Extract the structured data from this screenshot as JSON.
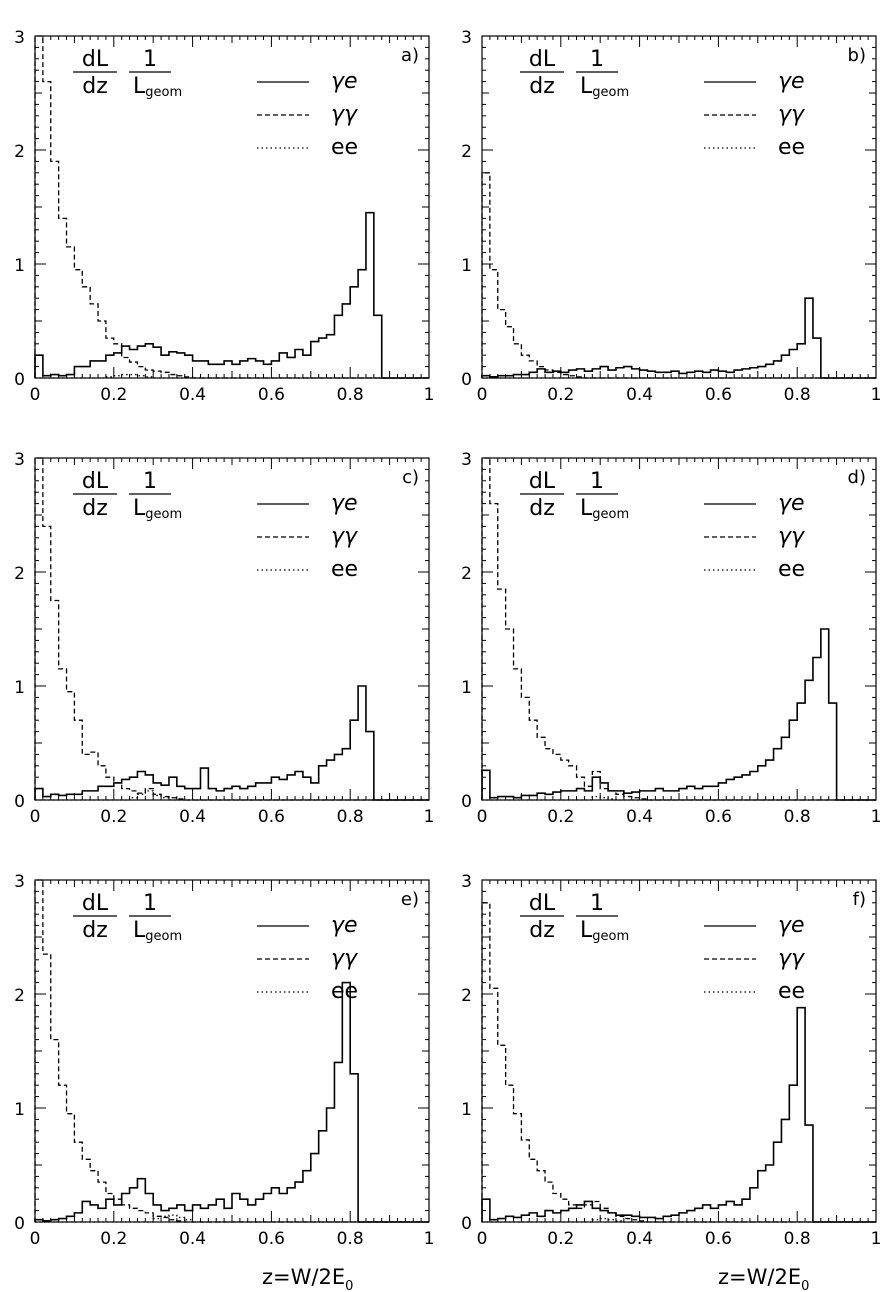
{
  "figure": {
    "xlabel": "z=W/2E",
    "xlabel_sub": "0"
  },
  "panel_common": {
    "frac_num": "dL",
    "frac_den": "dz",
    "frac2_num": "1",
    "frac2_den_main": "L",
    "frac2_den_sub": "geom",
    "legend": [
      {
        "label": "γe",
        "style": "solid"
      },
      {
        "label": "γγ",
        "style": "dashed"
      },
      {
        "label": "ee",
        "style": "dotted"
      }
    ],
    "xticks": [
      "0",
      "0.2",
      "0.4",
      "0.6",
      "0.8",
      "1"
    ],
    "yticks": [
      "0",
      "1",
      "2",
      "3"
    ]
  },
  "chart_data": [
    {
      "type": "line",
      "panel": "a)",
      "xlim": [
        0,
        1
      ],
      "ylim": [
        0,
        3
      ],
      "bin_width": 0.02,
      "series": [
        {
          "name": "γe",
          "style": "solid",
          "values": [
            0.2,
            0.02,
            0.03,
            0.02,
            0.03,
            0.1,
            0.1,
            0.15,
            0.15,
            0.2,
            0.22,
            0.28,
            0.25,
            0.28,
            0.3,
            0.27,
            0.2,
            0.23,
            0.22,
            0.2,
            0.15,
            0.15,
            0.12,
            0.12,
            0.15,
            0.12,
            0.15,
            0.17,
            0.15,
            0.12,
            0.15,
            0.22,
            0.18,
            0.25,
            0.2,
            0.32,
            0.35,
            0.38,
            0.55,
            0.65,
            0.8,
            0.95,
            1.45,
            0.55,
            0.0,
            0.0,
            0.0,
            0.0,
            0.0,
            0.0
          ]
        },
        {
          "name": "γγ",
          "style": "dashed",
          "values": [
            3.0,
            2.6,
            1.9,
            1.4,
            1.15,
            0.95,
            0.8,
            0.65,
            0.5,
            0.35,
            0.3,
            0.18,
            0.14,
            0.1,
            0.07,
            0.06,
            0.05,
            0.03,
            0.02,
            0.01,
            0,
            0,
            0,
            0,
            0,
            0,
            0,
            0,
            0,
            0,
            0,
            0,
            0,
            0,
            0,
            0,
            0,
            0,
            0,
            0,
            0,
            0,
            0,
            0,
            0,
            0,
            0,
            0,
            0,
            0
          ]
        },
        {
          "name": "ee",
          "style": "dotted",
          "values": [
            0,
            0,
            0,
            0,
            0,
            0,
            0,
            0,
            0,
            0.01,
            0.02,
            0.03,
            0.03,
            0.02,
            0.01,
            0,
            0,
            0,
            0,
            0,
            0,
            0,
            0,
            0,
            0,
            0,
            0,
            0,
            0,
            0,
            0,
            0,
            0,
            0,
            0,
            0,
            0,
            0,
            0,
            0,
            0,
            0,
            0,
            0,
            0,
            0,
            0,
            0,
            0,
            0
          ]
        }
      ]
    },
    {
      "type": "line",
      "panel": "b)",
      "xlim": [
        0,
        1
      ],
      "ylim": [
        0,
        3
      ],
      "bin_width": 0.02,
      "series": [
        {
          "name": "γe",
          "style": "solid",
          "values": [
            0.02,
            0.01,
            0.02,
            0.02,
            0.03,
            0.03,
            0.05,
            0.08,
            0.05,
            0.06,
            0.05,
            0.07,
            0.08,
            0.06,
            0.08,
            0.1,
            0.07,
            0.09,
            0.1,
            0.08,
            0.07,
            0.06,
            0.05,
            0.05,
            0.06,
            0.04,
            0.05,
            0.06,
            0.05,
            0.07,
            0.06,
            0.05,
            0.07,
            0.08,
            0.09,
            0.1,
            0.12,
            0.15,
            0.2,
            0.25,
            0.3,
            0.7,
            0.35,
            0.0,
            0.0,
            0.0,
            0.0,
            0.0,
            0.0,
            0.0
          ]
        },
        {
          "name": "γγ",
          "style": "dashed",
          "values": [
            1.8,
            0.95,
            0.6,
            0.45,
            0.3,
            0.2,
            0.15,
            0.1,
            0.07,
            0.05,
            0.03,
            0.02,
            0.01,
            0,
            0,
            0,
            0,
            0,
            0,
            0,
            0,
            0,
            0,
            0,
            0,
            0,
            0,
            0,
            0,
            0,
            0,
            0,
            0,
            0,
            0,
            0,
            0,
            0,
            0,
            0,
            0,
            0,
            0,
            0,
            0,
            0,
            0,
            0,
            0,
            0
          ]
        },
        {
          "name": "ee",
          "style": "dotted",
          "values": [
            0,
            0,
            0,
            0,
            0,
            0,
            0,
            0,
            0,
            0,
            0,
            0,
            0,
            0,
            0,
            0,
            0,
            0,
            0,
            0,
            0,
            0,
            0,
            0,
            0,
            0,
            0,
            0,
            0,
            0,
            0,
            0,
            0,
            0,
            0,
            0,
            0,
            0,
            0,
            0,
            0,
            0,
            0,
            0,
            0,
            0,
            0,
            0,
            0,
            0
          ]
        }
      ]
    },
    {
      "type": "line",
      "panel": "c)",
      "xlim": [
        0,
        1
      ],
      "ylim": [
        0,
        3
      ],
      "bin_width": 0.02,
      "series": [
        {
          "name": "γe",
          "style": "solid",
          "values": [
            0.1,
            0.03,
            0.05,
            0.04,
            0.05,
            0.05,
            0.08,
            0.08,
            0.12,
            0.12,
            0.15,
            0.18,
            0.2,
            0.25,
            0.22,
            0.15,
            0.13,
            0.2,
            0.12,
            0.1,
            0.1,
            0.28,
            0.1,
            0.08,
            0.1,
            0.12,
            0.1,
            0.12,
            0.15,
            0.15,
            0.2,
            0.18,
            0.22,
            0.25,
            0.2,
            0.15,
            0.3,
            0.35,
            0.4,
            0.45,
            0.7,
            1.0,
            0.6,
            0.0,
            0.0,
            0.0,
            0.0,
            0.0,
            0.0,
            0.0
          ]
        },
        {
          "name": "γγ",
          "style": "dashed",
          "values": [
            3.0,
            2.4,
            1.75,
            1.15,
            0.95,
            0.7,
            0.4,
            0.42,
            0.3,
            0.2,
            0.15,
            0.1,
            0.08,
            0.06,
            0.1,
            0.05,
            0.03,
            0.02,
            0.01,
            0,
            0,
            0,
            0,
            0,
            0,
            0,
            0,
            0,
            0,
            0,
            0,
            0,
            0,
            0,
            0,
            0,
            0,
            0,
            0,
            0,
            0,
            0,
            0,
            0,
            0,
            0,
            0,
            0,
            0,
            0
          ]
        },
        {
          "name": "ee",
          "style": "dotted",
          "values": [
            0,
            0,
            0,
            0,
            0,
            0,
            0,
            0,
            0,
            0,
            0,
            0,
            0.02,
            0.05,
            0.08,
            0.04,
            0.02,
            0,
            0,
            0,
            0,
            0,
            0,
            0,
            0,
            0,
            0,
            0,
            0,
            0,
            0,
            0,
            0,
            0,
            0,
            0,
            0,
            0,
            0,
            0,
            0,
            0,
            0,
            0,
            0,
            0,
            0,
            0,
            0,
            0
          ]
        }
      ]
    },
    {
      "type": "line",
      "panel": "d)",
      "xlim": [
        0,
        1
      ],
      "ylim": [
        0,
        3
      ],
      "bin_width": 0.02,
      "series": [
        {
          "name": "γe",
          "style": "solid",
          "values": [
            0.26,
            0.02,
            0.03,
            0.03,
            0.02,
            0.04,
            0.04,
            0.06,
            0.05,
            0.07,
            0.08,
            0.08,
            0.1,
            0.08,
            0.2,
            0.15,
            0.08,
            0.08,
            0.06,
            0.07,
            0.08,
            0.08,
            0.1,
            0.08,
            0.08,
            0.1,
            0.12,
            0.1,
            0.12,
            0.12,
            0.15,
            0.18,
            0.2,
            0.22,
            0.25,
            0.3,
            0.35,
            0.45,
            0.55,
            0.7,
            0.85,
            1.05,
            1.25,
            1.5,
            0.85,
            0.0,
            0.0,
            0.0,
            0.0,
            0.0
          ]
        },
        {
          "name": "γγ",
          "style": "dashed",
          "values": [
            3.0,
            2.6,
            1.85,
            1.5,
            1.15,
            0.9,
            0.7,
            0.55,
            0.45,
            0.4,
            0.35,
            0.3,
            0.2,
            0.12,
            0.25,
            0.1,
            0.08,
            0.05,
            0.03,
            0.02,
            0.01,
            0,
            0,
            0,
            0,
            0,
            0,
            0,
            0,
            0,
            0,
            0,
            0,
            0,
            0,
            0,
            0,
            0,
            0,
            0,
            0,
            0,
            0,
            0,
            0,
            0,
            0,
            0,
            0,
            0
          ]
        },
        {
          "name": "ee",
          "style": "dotted",
          "values": [
            0,
            0,
            0,
            0,
            0,
            0,
            0,
            0,
            0,
            0,
            0,
            0,
            0,
            0,
            0.03,
            0.02,
            0.01,
            0,
            0,
            0,
            0,
            0,
            0,
            0,
            0,
            0,
            0,
            0,
            0,
            0,
            0,
            0,
            0,
            0,
            0,
            0,
            0,
            0,
            0,
            0,
            0,
            0,
            0,
            0,
            0,
            0,
            0,
            0,
            0,
            0
          ]
        }
      ]
    },
    {
      "type": "line",
      "panel": "e)",
      "xlim": [
        0,
        1
      ],
      "ylim": [
        0,
        3
      ],
      "bin_width": 0.02,
      "series": [
        {
          "name": "γe",
          "style": "solid",
          "values": [
            0.02,
            0.01,
            0.02,
            0.03,
            0.05,
            0.08,
            0.18,
            0.15,
            0.12,
            0.2,
            0.15,
            0.25,
            0.3,
            0.38,
            0.25,
            0.15,
            0.1,
            0.12,
            0.15,
            0.1,
            0.15,
            0.12,
            0.15,
            0.2,
            0.12,
            0.25,
            0.2,
            0.15,
            0.2,
            0.25,
            0.3,
            0.25,
            0.3,
            0.35,
            0.45,
            0.6,
            0.8,
            1.0,
            1.4,
            2.1,
            1.3,
            0.0,
            0.0,
            0.0,
            0.0,
            0.0,
            0.0,
            0.0,
            0.0,
            0.0
          ]
        },
        {
          "name": "γγ",
          "style": "dashed",
          "values": [
            3.0,
            2.35,
            1.6,
            1.2,
            0.95,
            0.7,
            0.55,
            0.45,
            0.35,
            0.25,
            0.2,
            0.15,
            0.12,
            0.1,
            0.08,
            0.05,
            0.04,
            0.02,
            0.01,
            0,
            0,
            0,
            0,
            0,
            0,
            0,
            0,
            0,
            0,
            0,
            0,
            0,
            0,
            0,
            0,
            0,
            0,
            0,
            0,
            0,
            0,
            0,
            0,
            0,
            0,
            0,
            0,
            0,
            0,
            0
          ]
        },
        {
          "name": "ee",
          "style": "dotted",
          "values": [
            0,
            0,
            0,
            0,
            0,
            0,
            0,
            0,
            0,
            0,
            0,
            0,
            0,
            0,
            0,
            0.03,
            0.05,
            0.06,
            0.04,
            0.02,
            0,
            0,
            0,
            0,
            0,
            0,
            0,
            0,
            0,
            0,
            0,
            0,
            0,
            0,
            0,
            0,
            0,
            0,
            0,
            0,
            0,
            0,
            0,
            0,
            0,
            0,
            0,
            0,
            0,
            0
          ]
        }
      ]
    },
    {
      "type": "line",
      "panel": "f)",
      "xlim": [
        0,
        1
      ],
      "ylim": [
        0,
        3
      ],
      "bin_width": 0.02,
      "series": [
        {
          "name": "γe",
          "style": "solid",
          "values": [
            0.2,
            0.02,
            0.03,
            0.05,
            0.04,
            0.06,
            0.08,
            0.05,
            0.1,
            0.08,
            0.1,
            0.12,
            0.15,
            0.18,
            0.12,
            0.1,
            0.08,
            0.06,
            0.06,
            0.05,
            0.04,
            0.04,
            0.03,
            0.05,
            0.06,
            0.08,
            0.1,
            0.12,
            0.15,
            0.12,
            0.15,
            0.18,
            0.15,
            0.2,
            0.3,
            0.45,
            0.5,
            0.7,
            0.9,
            1.2,
            1.88,
            0.85,
            0.0,
            0.0,
            0.0,
            0.0,
            0.0,
            0.0,
            0.0,
            0.0
          ]
        },
        {
          "name": "γγ",
          "style": "dashed",
          "values": [
            2.8,
            2.05,
            1.55,
            1.2,
            0.95,
            0.72,
            0.55,
            0.45,
            0.35,
            0.25,
            0.2,
            0.15,
            0.12,
            0.15,
            0.18,
            0.12,
            0.08,
            0.05,
            0.03,
            0.02,
            0.01,
            0,
            0,
            0,
            0,
            0,
            0,
            0,
            0,
            0,
            0,
            0,
            0,
            0,
            0,
            0,
            0,
            0,
            0,
            0,
            0,
            0,
            0,
            0,
            0,
            0,
            0,
            0,
            0,
            0
          ]
        },
        {
          "name": "ee",
          "style": "dotted",
          "values": [
            0,
            0,
            0,
            0,
            0,
            0,
            0,
            0,
            0,
            0,
            0,
            0,
            0,
            0,
            0.02,
            0.03,
            0.02,
            0.01,
            0,
            0,
            0,
            0,
            0,
            0,
            0,
            0,
            0,
            0,
            0,
            0,
            0,
            0,
            0,
            0,
            0,
            0,
            0,
            0,
            0,
            0,
            0,
            0,
            0,
            0,
            0,
            0,
            0,
            0,
            0,
            0
          ]
        }
      ]
    }
  ]
}
